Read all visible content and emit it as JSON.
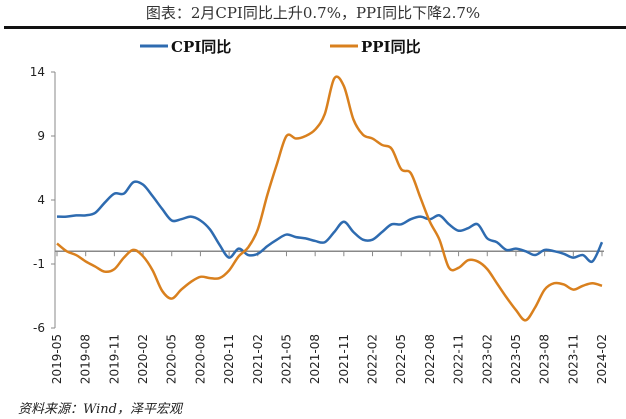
{
  "title": "图表：2月CPI同比上升0.7%，PPI同比下降2.7%",
  "source": "资料来源：Wind，泽平宏观",
  "chart_data": {
    "type": "line",
    "title": "图表：2月CPI同比上升0.7%，PPI同比下降2.7%",
    "xlabel": "",
    "ylabel": "",
    "ylim": [
      -6,
      14
    ],
    "yticks": [
      14,
      9,
      4,
      -1,
      -6
    ],
    "grid": false,
    "legend": "top",
    "colors": {
      "CPI同比": "#2e6bb0",
      "PPI同比": "#d9801e"
    },
    "x": [
      "2019-05",
      "2019-06",
      "2019-07",
      "2019-08",
      "2019-09",
      "2019-10",
      "2019-11",
      "2019-12",
      "2020-01",
      "2020-02",
      "2020-03",
      "2020-04",
      "2020-05",
      "2020-06",
      "2020-07",
      "2020-08",
      "2020-09",
      "2020-10",
      "2020-11",
      "2020-12",
      "2021-01",
      "2021-02",
      "2021-03",
      "2021-04",
      "2021-05",
      "2021-06",
      "2021-07",
      "2021-08",
      "2021-09",
      "2021-10",
      "2021-11",
      "2021-12",
      "2022-01",
      "2022-02",
      "2022-03",
      "2022-04",
      "2022-05",
      "2022-06",
      "2022-07",
      "2022-08",
      "2022-09",
      "2022-10",
      "2022-11",
      "2022-12",
      "2023-01",
      "2023-02",
      "2023-03",
      "2023-04",
      "2023-05",
      "2023-06",
      "2023-07",
      "2023-08",
      "2023-09",
      "2023-10",
      "2023-11",
      "2023-12",
      "2024-01",
      "2024-02"
    ],
    "xtick_labels": [
      "2019-05",
      "2019-08",
      "2019-11",
      "2020-02",
      "2020-05",
      "2020-08",
      "2020-11",
      "2021-02",
      "2021-05",
      "2021-08",
      "2021-11",
      "2022-02",
      "2022-05",
      "2022-08",
      "2022-11",
      "2023-02",
      "2023-05",
      "2023-08",
      "2023-11",
      "2024-02"
    ],
    "series": [
      {
        "name": "CPI同比",
        "values": [
          2.7,
          2.7,
          2.8,
          2.8,
          3.0,
          3.8,
          4.5,
          4.5,
          5.4,
          5.2,
          4.3,
          3.3,
          2.4,
          2.5,
          2.7,
          2.4,
          1.7,
          0.5,
          -0.5,
          0.2,
          -0.3,
          -0.2,
          0.4,
          0.9,
          1.3,
          1.1,
          1.0,
          0.8,
          0.7,
          1.5,
          2.3,
          1.5,
          0.9,
          0.9,
          1.5,
          2.1,
          2.1,
          2.5,
          2.7,
          2.5,
          2.8,
          2.1,
          1.6,
          1.8,
          2.1,
          1.0,
          0.7,
          0.1,
          0.2,
          0.0,
          -0.3,
          0.1,
          0.0,
          -0.2,
          -0.5,
          -0.3,
          -0.8,
          0.7
        ]
      },
      {
        "name": "PPI同比",
        "values": [
          0.6,
          0.0,
          -0.3,
          -0.8,
          -1.2,
          -1.6,
          -1.4,
          -0.5,
          0.1,
          -0.4,
          -1.5,
          -3.1,
          -3.7,
          -3.0,
          -2.4,
          -2.0,
          -2.1,
          -2.1,
          -1.5,
          -0.4,
          0.3,
          1.7,
          4.4,
          6.8,
          9.0,
          8.8,
          9.0,
          9.5,
          10.7,
          13.5,
          12.9,
          10.3,
          9.1,
          8.8,
          8.3,
          8.0,
          6.4,
          6.1,
          4.2,
          2.3,
          0.9,
          -1.3,
          -1.3,
          -0.7,
          -0.8,
          -1.4,
          -2.5,
          -3.6,
          -4.6,
          -5.4,
          -4.4,
          -3.0,
          -2.5,
          -2.6,
          -3.0,
          -2.7,
          -2.5,
          -2.7
        ]
      }
    ]
  }
}
